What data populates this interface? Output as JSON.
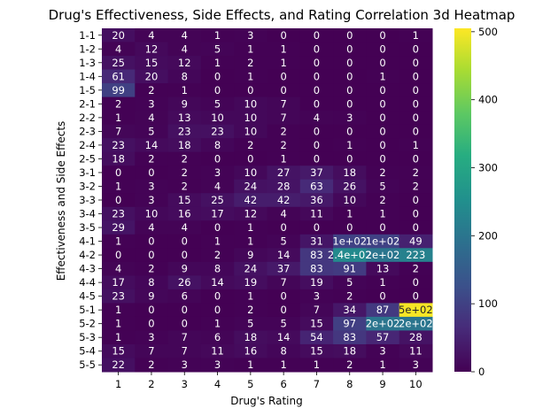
{
  "chart_data": {
    "type": "heatmap",
    "title": "Drug's Effectiveness, Side Effects, and Rating Correlation 3d Heatmap",
    "xlabel": "Drug's Rating",
    "ylabel": "Effectiveness and Side Effects",
    "x_categories": [
      "1",
      "2",
      "3",
      "4",
      "5",
      "6",
      "7",
      "8",
      "9",
      "10"
    ],
    "y_categories": [
      "1-1",
      "1-2",
      "1-3",
      "1-4",
      "1-5",
      "2-1",
      "2-2",
      "2-3",
      "2-4",
      "2-5",
      "3-1",
      "3-2",
      "3-3",
      "3-4",
      "3-5",
      "4-1",
      "4-2",
      "4-3",
      "4-4",
      "4-5",
      "5-1",
      "5-2",
      "5-3",
      "5-4",
      "5-5"
    ],
    "values": [
      [
        20,
        4,
        4,
        1,
        3,
        0,
        0,
        0,
        0,
        1
      ],
      [
        4,
        12,
        4,
        5,
        1,
        1,
        0,
        0,
        0,
        0
      ],
      [
        25,
        15,
        12,
        1,
        2,
        1,
        0,
        0,
        0,
        0
      ],
      [
        61,
        20,
        8,
        0,
        1,
        0,
        0,
        0,
        1,
        0
      ],
      [
        99,
        2,
        1,
        0,
        0,
        0,
        0,
        0,
        0,
        0
      ],
      [
        2,
        3,
        9,
        5,
        10,
        7,
        0,
        0,
        0,
        0
      ],
      [
        1,
        4,
        13,
        10,
        10,
        7,
        4,
        3,
        0,
        0
      ],
      [
        7,
        5,
        23,
        23,
        10,
        2,
        0,
        0,
        0,
        0
      ],
      [
        23,
        14,
        18,
        8,
        2,
        2,
        0,
        1,
        0,
        1
      ],
      [
        18,
        2,
        2,
        0,
        0,
        1,
        0,
        0,
        0,
        0
      ],
      [
        0,
        0,
        2,
        3,
        10,
        27,
        37,
        18,
        2,
        2
      ],
      [
        1,
        3,
        2,
        4,
        24,
        28,
        63,
        26,
        5,
        2
      ],
      [
        0,
        3,
        15,
        25,
        42,
        42,
        36,
        10,
        2,
        0
      ],
      [
        23,
        10,
        16,
        17,
        12,
        4,
        11,
        1,
        1,
        0
      ],
      [
        29,
        4,
        4,
        0,
        1,
        0,
        0,
        0,
        0,
        0
      ],
      [
        1,
        0,
        0,
        1,
        1,
        5,
        31,
        100,
        100,
        49
      ],
      [
        0,
        0,
        0,
        2,
        9,
        14,
        83,
        240,
        200,
        223
      ],
      [
        4,
        2,
        9,
        8,
        24,
        37,
        83,
        91,
        13,
        2
      ],
      [
        17,
        8,
        26,
        14,
        19,
        7,
        19,
        5,
        1,
        0
      ],
      [
        23,
        9,
        6,
        0,
        1,
        0,
        3,
        2,
        0,
        0
      ],
      [
        1,
        0,
        0,
        0,
        2,
        0,
        7,
        34,
        87,
        500
      ],
      [
        1,
        0,
        0,
        1,
        5,
        5,
        15,
        97,
        200,
        200
      ],
      [
        1,
        3,
        7,
        6,
        18,
        14,
        54,
        83,
        57,
        28
      ],
      [
        15,
        7,
        7,
        11,
        16,
        8,
        15,
        18,
        3,
        11
      ],
      [
        22,
        2,
        3,
        3,
        1,
        1,
        1,
        2,
        1,
        3
      ]
    ],
    "labels": [
      [
        "20",
        "4",
        "4",
        "1",
        "3",
        "0",
        "0",
        "0",
        "0",
        "1"
      ],
      [
        "4",
        "12",
        "4",
        "5",
        "1",
        "1",
        "0",
        "0",
        "0",
        "0"
      ],
      [
        "25",
        "15",
        "12",
        "1",
        "2",
        "1",
        "0",
        "0",
        "0",
        "0"
      ],
      [
        "61",
        "20",
        "8",
        "0",
        "1",
        "0",
        "0",
        "0",
        "1",
        "0"
      ],
      [
        "99",
        "2",
        "1",
        "0",
        "0",
        "0",
        "0",
        "0",
        "0",
        "0"
      ],
      [
        "2",
        "3",
        "9",
        "5",
        "10",
        "7",
        "0",
        "0",
        "0",
        "0"
      ],
      [
        "1",
        "4",
        "13",
        "10",
        "10",
        "7",
        "4",
        "3",
        "0",
        "0"
      ],
      [
        "7",
        "5",
        "23",
        "23",
        "10",
        "2",
        "0",
        "0",
        "0",
        "0"
      ],
      [
        "23",
        "14",
        "18",
        "8",
        "2",
        "2",
        "0",
        "1",
        "0",
        "1"
      ],
      [
        "18",
        "2",
        "2",
        "0",
        "0",
        "1",
        "0",
        "0",
        "0",
        "0"
      ],
      [
        "0",
        "0",
        "2",
        "3",
        "10",
        "27",
        "37",
        "18",
        "2",
        "2"
      ],
      [
        "1",
        "3",
        "2",
        "4",
        "24",
        "28",
        "63",
        "26",
        "5",
        "2"
      ],
      [
        "0",
        "3",
        "15",
        "25",
        "42",
        "42",
        "36",
        "10",
        "2",
        "0"
      ],
      [
        "23",
        "10",
        "16",
        "17",
        "12",
        "4",
        "11",
        "1",
        "1",
        "0"
      ],
      [
        "29",
        "4",
        "4",
        "0",
        "1",
        "0",
        "0",
        "0",
        "0",
        "0"
      ],
      [
        "1",
        "0",
        "0",
        "1",
        "1",
        "5",
        "31",
        "1e+02",
        "1e+02",
        "49"
      ],
      [
        "0",
        "0",
        "0",
        "2",
        "9",
        "14",
        "83",
        "2.4e+02",
        "2e+02",
        "223"
      ],
      [
        "4",
        "2",
        "9",
        "8",
        "24",
        "37",
        "83",
        "91",
        "13",
        "2"
      ],
      [
        "17",
        "8",
        "26",
        "14",
        "19",
        "7",
        "19",
        "5",
        "1",
        "0"
      ],
      [
        "23",
        "9",
        "6",
        "0",
        "1",
        "0",
        "3",
        "2",
        "0",
        "0"
      ],
      [
        "1",
        "0",
        "0",
        "0",
        "2",
        "0",
        "7",
        "34",
        "87",
        "5e+02"
      ],
      [
        "1",
        "0",
        "0",
        "1",
        "5",
        "5",
        "15",
        "97",
        "2e+02",
        "2e+02"
      ],
      [
        "1",
        "3",
        "7",
        "6",
        "18",
        "14",
        "54",
        "83",
        "57",
        "28"
      ],
      [
        "15",
        "7",
        "7",
        "11",
        "16",
        "8",
        "15",
        "18",
        "3",
        "11"
      ],
      [
        "22",
        "2",
        "3",
        "3",
        "1",
        "1",
        "1",
        "2",
        "1",
        "3"
      ]
    ],
    "colormap": "viridis",
    "vmin": 0,
    "vmax": 505,
    "colorbar_ticks": [
      0,
      100,
      200,
      300,
      400,
      500
    ],
    "colorbar_tick_labels": [
      "0",
      "100",
      "200",
      "300",
      "400",
      "500"
    ]
  }
}
